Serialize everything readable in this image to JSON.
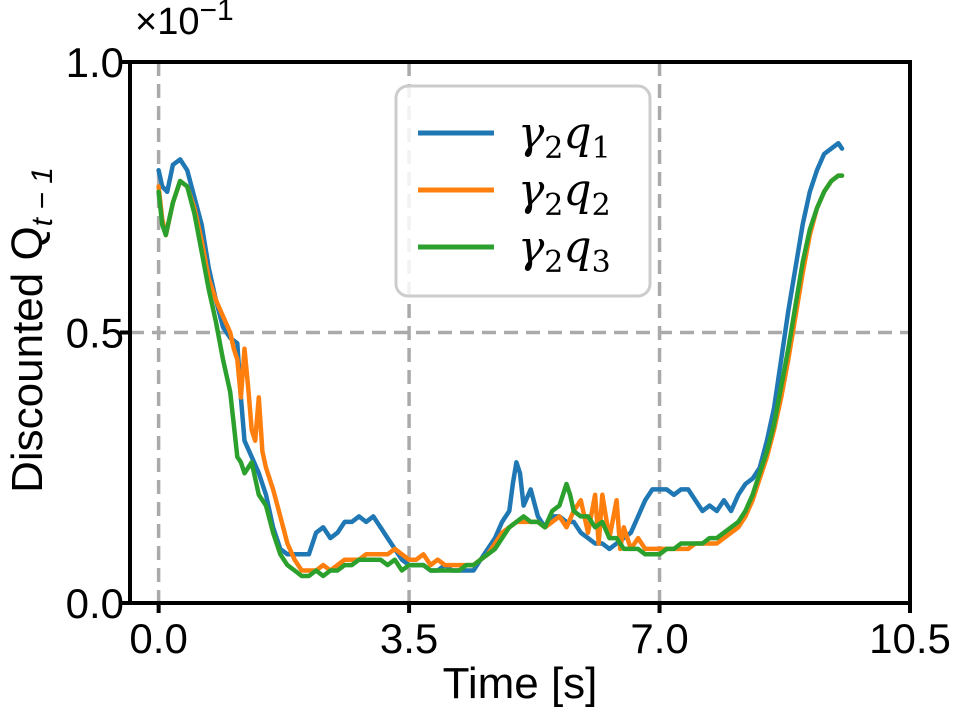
{
  "chart_data": {
    "type": "line",
    "title": "",
    "xlabel": "Time [s]",
    "ylabel": "Discounted Q",
    "ylabel_subscript": "t − 1",
    "y_offset_label": {
      "base": "×10",
      "exponent": "−1"
    },
    "xlim": [
      -0.4,
      10.5
    ],
    "ylim": [
      0.0,
      1.0
    ],
    "xticks": [
      0.0,
      3.5,
      7.0,
      10.5
    ],
    "xtick_labels": [
      "0.0",
      "3.5",
      "7.0",
      "10.5"
    ],
    "yticks": [
      0.0,
      0.5,
      1.0
    ],
    "ytick_labels": [
      "0.0",
      "0.5",
      "1.0"
    ],
    "grid": true,
    "grid_style": "dashed",
    "legend_position": "upper-center",
    "series": [
      {
        "name": "γ2q1",
        "legend": {
          "base": "γ",
          "base_sub": "2",
          "var": "q",
          "var_sub": "1"
        },
        "color": "#1f77b4",
        "points": [
          [
            0.0,
            0.8
          ],
          [
            0.05,
            0.77
          ],
          [
            0.12,
            0.76
          ],
          [
            0.2,
            0.81
          ],
          [
            0.3,
            0.82
          ],
          [
            0.4,
            0.8
          ],
          [
            0.5,
            0.75
          ],
          [
            0.6,
            0.7
          ],
          [
            0.7,
            0.62
          ],
          [
            0.8,
            0.56
          ],
          [
            0.9,
            0.51
          ],
          [
            1.0,
            0.49
          ],
          [
            1.1,
            0.48
          ],
          [
            1.15,
            0.38
          ],
          [
            1.2,
            0.3
          ],
          [
            1.3,
            0.27
          ],
          [
            1.4,
            0.24
          ],
          [
            1.5,
            0.2
          ],
          [
            1.6,
            0.14
          ],
          [
            1.7,
            0.1
          ],
          [
            1.8,
            0.09
          ],
          [
            1.9,
            0.09
          ],
          [
            2.0,
            0.09
          ],
          [
            2.1,
            0.09
          ],
          [
            2.2,
            0.13
          ],
          [
            2.3,
            0.14
          ],
          [
            2.4,
            0.12
          ],
          [
            2.5,
            0.13
          ],
          [
            2.6,
            0.15
          ],
          [
            2.7,
            0.15
          ],
          [
            2.8,
            0.16
          ],
          [
            2.9,
            0.15
          ],
          [
            3.0,
            0.16
          ],
          [
            3.1,
            0.14
          ],
          [
            3.2,
            0.12
          ],
          [
            3.3,
            0.1
          ],
          [
            3.4,
            0.08
          ],
          [
            3.5,
            0.07
          ],
          [
            3.6,
            0.07
          ],
          [
            3.7,
            0.07
          ],
          [
            3.8,
            0.06
          ],
          [
            3.9,
            0.06
          ],
          [
            4.0,
            0.07
          ],
          [
            4.1,
            0.06
          ],
          [
            4.2,
            0.06
          ],
          [
            4.3,
            0.06
          ],
          [
            4.4,
            0.06
          ],
          [
            4.5,
            0.08
          ],
          [
            4.6,
            0.1
          ],
          [
            4.7,
            0.12
          ],
          [
            4.8,
            0.15
          ],
          [
            4.9,
            0.17
          ],
          [
            4.95,
            0.22
          ],
          [
            5.0,
            0.26
          ],
          [
            5.05,
            0.24
          ],
          [
            5.1,
            0.18
          ],
          [
            5.2,
            0.21
          ],
          [
            5.3,
            0.16
          ],
          [
            5.4,
            0.14
          ],
          [
            5.5,
            0.16
          ],
          [
            5.6,
            0.16
          ],
          [
            5.7,
            0.15
          ],
          [
            5.8,
            0.15
          ],
          [
            5.9,
            0.13
          ],
          [
            6.0,
            0.12
          ],
          [
            6.1,
            0.11
          ],
          [
            6.2,
            0.11
          ],
          [
            6.3,
            0.1
          ],
          [
            6.4,
            0.11
          ],
          [
            6.5,
            0.12
          ],
          [
            6.6,
            0.13
          ],
          [
            6.7,
            0.16
          ],
          [
            6.8,
            0.19
          ],
          [
            6.9,
            0.21
          ],
          [
            7.0,
            0.21
          ],
          [
            7.1,
            0.21
          ],
          [
            7.2,
            0.2
          ],
          [
            7.3,
            0.21
          ],
          [
            7.4,
            0.21
          ],
          [
            7.5,
            0.19
          ],
          [
            7.6,
            0.17
          ],
          [
            7.7,
            0.18
          ],
          [
            7.8,
            0.17
          ],
          [
            7.9,
            0.19
          ],
          [
            8.0,
            0.17
          ],
          [
            8.1,
            0.2
          ],
          [
            8.2,
            0.22
          ],
          [
            8.3,
            0.23
          ],
          [
            8.4,
            0.25
          ],
          [
            8.5,
            0.3
          ],
          [
            8.6,
            0.36
          ],
          [
            8.7,
            0.45
          ],
          [
            8.8,
            0.54
          ],
          [
            8.9,
            0.62
          ],
          [
            9.0,
            0.7
          ],
          [
            9.1,
            0.76
          ],
          [
            9.2,
            0.8
          ],
          [
            9.3,
            0.83
          ],
          [
            9.4,
            0.84
          ],
          [
            9.5,
            0.85
          ],
          [
            9.55,
            0.84
          ]
        ]
      },
      {
        "name": "γ2q2",
        "legend": {
          "base": "γ",
          "base_sub": "2",
          "var": "q",
          "var_sub": "2"
        },
        "color": "#ff7f0e",
        "points": [
          [
            0.0,
            0.77
          ],
          [
            0.05,
            0.71
          ],
          [
            0.1,
            0.68
          ],
          [
            0.2,
            0.74
          ],
          [
            0.3,
            0.78
          ],
          [
            0.4,
            0.77
          ],
          [
            0.5,
            0.73
          ],
          [
            0.6,
            0.67
          ],
          [
            0.7,
            0.6
          ],
          [
            0.8,
            0.56
          ],
          [
            0.9,
            0.53
          ],
          [
            1.0,
            0.5
          ],
          [
            1.05,
            0.47
          ],
          [
            1.1,
            0.45
          ],
          [
            1.15,
            0.38
          ],
          [
            1.2,
            0.47
          ],
          [
            1.25,
            0.4
          ],
          [
            1.3,
            0.32
          ],
          [
            1.35,
            0.3
          ],
          [
            1.4,
            0.38
          ],
          [
            1.45,
            0.28
          ],
          [
            1.5,
            0.25
          ],
          [
            1.6,
            0.21
          ],
          [
            1.7,
            0.16
          ],
          [
            1.8,
            0.11
          ],
          [
            1.9,
            0.08
          ],
          [
            2.0,
            0.06
          ],
          [
            2.1,
            0.06
          ],
          [
            2.2,
            0.06
          ],
          [
            2.3,
            0.07
          ],
          [
            2.4,
            0.06
          ],
          [
            2.5,
            0.07
          ],
          [
            2.6,
            0.08
          ],
          [
            2.7,
            0.08
          ],
          [
            2.8,
            0.08
          ],
          [
            2.9,
            0.09
          ],
          [
            3.0,
            0.09
          ],
          [
            3.1,
            0.09
          ],
          [
            3.2,
            0.09
          ],
          [
            3.3,
            0.1
          ],
          [
            3.4,
            0.09
          ],
          [
            3.5,
            0.08
          ],
          [
            3.6,
            0.08
          ],
          [
            3.7,
            0.09
          ],
          [
            3.8,
            0.07
          ],
          [
            3.9,
            0.08
          ],
          [
            4.0,
            0.07
          ],
          [
            4.1,
            0.07
          ],
          [
            4.2,
            0.07
          ],
          [
            4.3,
            0.07
          ],
          [
            4.4,
            0.07
          ],
          [
            4.5,
            0.08
          ],
          [
            4.6,
            0.09
          ],
          [
            4.7,
            0.11
          ],
          [
            4.8,
            0.13
          ],
          [
            4.9,
            0.14
          ],
          [
            5.0,
            0.15
          ],
          [
            5.1,
            0.15
          ],
          [
            5.2,
            0.15
          ],
          [
            5.3,
            0.15
          ],
          [
            5.4,
            0.14
          ],
          [
            5.5,
            0.15
          ],
          [
            5.6,
            0.16
          ],
          [
            5.7,
            0.14
          ],
          [
            5.8,
            0.17
          ],
          [
            5.9,
            0.19
          ],
          [
            6.0,
            0.13
          ],
          [
            6.1,
            0.2
          ],
          [
            6.15,
            0.11
          ],
          [
            6.2,
            0.2
          ],
          [
            6.3,
            0.12
          ],
          [
            6.4,
            0.19
          ],
          [
            6.45,
            0.1
          ],
          [
            6.5,
            0.14
          ],
          [
            6.6,
            0.1
          ],
          [
            6.7,
            0.12
          ],
          [
            6.8,
            0.1
          ],
          [
            6.9,
            0.1
          ],
          [
            7.0,
            0.1
          ],
          [
            7.1,
            0.1
          ],
          [
            7.2,
            0.1
          ],
          [
            7.3,
            0.1
          ],
          [
            7.4,
            0.1
          ],
          [
            7.5,
            0.11
          ],
          [
            7.6,
            0.11
          ],
          [
            7.7,
            0.11
          ],
          [
            7.8,
            0.11
          ],
          [
            7.9,
            0.12
          ],
          [
            8.0,
            0.13
          ],
          [
            8.1,
            0.14
          ],
          [
            8.2,
            0.16
          ],
          [
            8.3,
            0.19
          ],
          [
            8.4,
            0.23
          ],
          [
            8.5,
            0.27
          ],
          [
            8.6,
            0.32
          ],
          [
            8.7,
            0.38
          ],
          [
            8.8,
            0.45
          ],
          [
            8.9,
            0.53
          ],
          [
            9.0,
            0.61
          ],
          [
            9.1,
            0.68
          ],
          [
            9.2,
            0.73
          ],
          [
            9.3,
            0.76
          ],
          [
            9.4,
            0.78
          ],
          [
            9.5,
            0.79
          ],
          [
            9.55,
            0.79
          ]
        ]
      },
      {
        "name": "γ2q3",
        "legend": {
          "base": "γ",
          "base_sub": "2",
          "var": "q",
          "var_sub": "3"
        },
        "color": "#2ca02c",
        "points": [
          [
            0.0,
            0.76
          ],
          [
            0.05,
            0.7
          ],
          [
            0.1,
            0.68
          ],
          [
            0.2,
            0.74
          ],
          [
            0.3,
            0.78
          ],
          [
            0.4,
            0.77
          ],
          [
            0.5,
            0.72
          ],
          [
            0.6,
            0.65
          ],
          [
            0.7,
            0.58
          ],
          [
            0.8,
            0.52
          ],
          [
            0.9,
            0.45
          ],
          [
            1.0,
            0.39
          ],
          [
            1.05,
            0.33
          ],
          [
            1.1,
            0.27
          ],
          [
            1.15,
            0.26
          ],
          [
            1.2,
            0.24
          ],
          [
            1.3,
            0.26
          ],
          [
            1.4,
            0.2
          ],
          [
            1.5,
            0.18
          ],
          [
            1.6,
            0.13
          ],
          [
            1.7,
            0.09
          ],
          [
            1.8,
            0.07
          ],
          [
            1.9,
            0.06
          ],
          [
            2.0,
            0.05
          ],
          [
            2.1,
            0.05
          ],
          [
            2.2,
            0.06
          ],
          [
            2.3,
            0.05
          ],
          [
            2.4,
            0.06
          ],
          [
            2.5,
            0.06
          ],
          [
            2.6,
            0.07
          ],
          [
            2.7,
            0.07
          ],
          [
            2.8,
            0.08
          ],
          [
            2.9,
            0.08
          ],
          [
            3.0,
            0.08
          ],
          [
            3.1,
            0.08
          ],
          [
            3.2,
            0.07
          ],
          [
            3.3,
            0.08
          ],
          [
            3.4,
            0.06
          ],
          [
            3.5,
            0.07
          ],
          [
            3.6,
            0.07
          ],
          [
            3.7,
            0.07
          ],
          [
            3.8,
            0.06
          ],
          [
            3.9,
            0.06
          ],
          [
            4.0,
            0.06
          ],
          [
            4.1,
            0.06
          ],
          [
            4.2,
            0.06
          ],
          [
            4.3,
            0.07
          ],
          [
            4.4,
            0.07
          ],
          [
            4.5,
            0.08
          ],
          [
            4.6,
            0.09
          ],
          [
            4.7,
            0.1
          ],
          [
            4.8,
            0.12
          ],
          [
            4.9,
            0.14
          ],
          [
            5.0,
            0.15
          ],
          [
            5.1,
            0.16
          ],
          [
            5.2,
            0.15
          ],
          [
            5.3,
            0.15
          ],
          [
            5.4,
            0.14
          ],
          [
            5.5,
            0.17
          ],
          [
            5.6,
            0.18
          ],
          [
            5.7,
            0.22
          ],
          [
            5.75,
            0.2
          ],
          [
            5.8,
            0.17
          ],
          [
            5.9,
            0.16
          ],
          [
            6.0,
            0.16
          ],
          [
            6.1,
            0.14
          ],
          [
            6.2,
            0.15
          ],
          [
            6.3,
            0.12
          ],
          [
            6.4,
            0.12
          ],
          [
            6.5,
            0.1
          ],
          [
            6.6,
            0.1
          ],
          [
            6.7,
            0.1
          ],
          [
            6.8,
            0.09
          ],
          [
            6.9,
            0.09
          ],
          [
            7.0,
            0.09
          ],
          [
            7.1,
            0.1
          ],
          [
            7.2,
            0.1
          ],
          [
            7.3,
            0.11
          ],
          [
            7.4,
            0.11
          ],
          [
            7.5,
            0.11
          ],
          [
            7.6,
            0.11
          ],
          [
            7.7,
            0.12
          ],
          [
            7.8,
            0.12
          ],
          [
            7.9,
            0.13
          ],
          [
            8.0,
            0.14
          ],
          [
            8.1,
            0.15
          ],
          [
            8.2,
            0.17
          ],
          [
            8.3,
            0.2
          ],
          [
            8.4,
            0.24
          ],
          [
            8.5,
            0.28
          ],
          [
            8.6,
            0.33
          ],
          [
            8.7,
            0.4
          ],
          [
            8.8,
            0.47
          ],
          [
            8.9,
            0.55
          ],
          [
            9.0,
            0.63
          ],
          [
            9.1,
            0.69
          ],
          [
            9.2,
            0.73
          ],
          [
            9.3,
            0.76
          ],
          [
            9.4,
            0.78
          ],
          [
            9.5,
            0.79
          ],
          [
            9.55,
            0.79
          ]
        ]
      }
    ]
  }
}
